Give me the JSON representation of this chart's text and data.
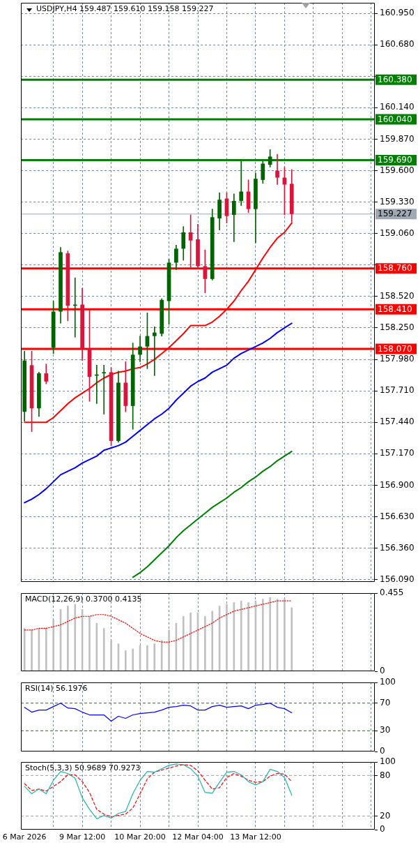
{
  "chart_data": [
    {
      "type": "candlestick",
      "title": "USDJPY,H4 159.487 159.610 159.158 159.227",
      "categories": [
        null,
        null,
        null,
        null,
        null,
        null,
        null,
        null,
        null,
        null,
        null,
        null,
        null,
        null,
        null,
        null,
        null,
        null,
        null,
        null,
        null,
        null,
        null,
        null,
        null,
        null,
        null,
        null,
        null,
        null,
        null,
        null,
        null,
        null,
        null,
        null,
        null,
        null,
        null,
        null,
        null,
        null,
        null,
        null,
        null,
        null,
        null,
        null,
        null
      ],
      "ohlc": [
        [
          157.53,
          158.05,
          157.45,
          157.97
        ],
        [
          157.93,
          158.05,
          157.36,
          157.56
        ],
        [
          157.56,
          157.87,
          157.49,
          157.86
        ],
        [
          157.86,
          157.94,
          157.77,
          157.79
        ],
        [
          158.08,
          158.48,
          158.03,
          158.39
        ],
        [
          158.39,
          158.94,
          158.29,
          158.9
        ],
        [
          158.89,
          158.91,
          158.31,
          158.44
        ],
        [
          158.44,
          158.68,
          158.17,
          158.45
        ],
        [
          158.45,
          158.59,
          157.97,
          158.07
        ],
        [
          158.07,
          158.4,
          157.62,
          157.83
        ],
        [
          157.84,
          157.93,
          157.6,
          157.85
        ],
        [
          157.86,
          157.93,
          157.51,
          157.87
        ],
        [
          157.87,
          157.91,
          157.24,
          157.28
        ],
        [
          157.28,
          157.88,
          157.27,
          157.78
        ],
        [
          157.78,
          157.96,
          157.53,
          157.58
        ],
        [
          157.58,
          158.12,
          157.38,
          158.02
        ],
        [
          158.02,
          158.18,
          157.96,
          158.09
        ],
        [
          158.09,
          158.38,
          157.9,
          158.18
        ],
        [
          158.18,
          158.26,
          157.84,
          158.21
        ],
        [
          158.2,
          158.5,
          158.18,
          158.49
        ],
        [
          158.48,
          158.84,
          158.28,
          158.81
        ],
        [
          158.81,
          158.96,
          158.75,
          158.93
        ],
        [
          158.93,
          159.12,
          158.83,
          159.07
        ],
        [
          159.07,
          159.22,
          158.76,
          159
        ],
        [
          159.01,
          159.14,
          158.76,
          158.78
        ],
        [
          158.78,
          158.92,
          158.55,
          158.67
        ],
        [
          158.67,
          159.27,
          158.66,
          159.2
        ],
        [
          159.19,
          159.41,
          159.09,
          159.35
        ],
        [
          159.36,
          159.41,
          159.15,
          159.21
        ],
        [
          159.22,
          159.4,
          158.99,
          159.34
        ],
        [
          159.34,
          159.68,
          159.3,
          159.42
        ],
        [
          159.42,
          159.52,
          159.24,
          159.27
        ],
        [
          159.27,
          159.58,
          158.98,
          159.53
        ],
        [
          159.52,
          159.68,
          159.49,
          159.66
        ],
        [
          159.65,
          159.78,
          159.63,
          159.72
        ],
        [
          159.6,
          159.74,
          159.48,
          159.54
        ],
        [
          159.54,
          159.63,
          159.22,
          159.48
        ],
        [
          159.487,
          159.61,
          159.158,
          159.227
        ],
        null,
        null,
        null,
        null,
        null,
        null,
        null,
        null,
        null,
        null,
        null
      ],
      "colors": [
        "#006400",
        "#dc143c",
        "#006400",
        "#dc143c",
        "#006400",
        "#006400",
        "#dc143c",
        "#006400",
        "#dc143c",
        "#dc143c",
        "#006400",
        "#006400",
        "#dc143c",
        "#006400",
        "#dc143c",
        "#006400",
        "#006400",
        "#006400",
        "#006400",
        "#006400",
        "#006400",
        "#006400",
        "#006400",
        "#dc143c",
        "#dc143c",
        "#dc143c",
        "#006400",
        "#006400",
        "#dc143c",
        "#006400",
        "#006400",
        "#dc143c",
        "#006400",
        "#006400",
        "#006400",
        "#dc143c",
        "#dc143c",
        "#dc143c",
        null,
        null,
        null,
        null,
        null,
        null,
        null,
        null,
        null,
        null,
        null
      ],
      "series": [
        {
          "type": "line",
          "color": "#ff0000",
          "values": [
            157.44,
            157.44,
            157.44,
            157.44,
            157.48,
            157.54,
            157.6,
            157.65,
            157.69,
            157.73,
            157.78,
            157.82,
            157.85,
            157.87,
            157.88,
            157.9,
            157.91,
            157.94,
            157.98,
            158.03,
            158.08,
            158.14,
            158.2,
            158.27,
            158.27,
            158.27,
            158.3,
            158.35,
            158.41,
            158.48,
            158.57,
            158.65,
            158.75,
            158.85,
            158.94,
            159.02,
            159.07,
            159.15,
            null,
            null,
            null,
            null,
            null,
            null,
            null,
            null,
            null,
            null,
            null
          ]
        },
        {
          "type": "line",
          "color": "#0000ff",
          "values": [
            156.75,
            156.78,
            156.82,
            156.87,
            156.93,
            156.99,
            157.02,
            157.05,
            157.09,
            157.12,
            157.15,
            157.2,
            157.22,
            157.24,
            157.27,
            157.32,
            157.37,
            157.42,
            157.47,
            157.51,
            157.56,
            157.63,
            157.69,
            157.75,
            157.79,
            157.82,
            157.87,
            157.9,
            157.93,
            157.99,
            158.03,
            158.06,
            158.09,
            158.12,
            158.16,
            158.21,
            158.25,
            158.29,
            null,
            null,
            null,
            null,
            null,
            null,
            null,
            null,
            null,
            null,
            null
          ]
        },
        {
          "type": "line",
          "color": "#008000",
          "values": [
            null,
            null,
            null,
            null,
            null,
            null,
            null,
            null,
            null,
            null,
            null,
            null,
            null,
            null,
            null,
            156.11,
            156.15,
            156.2,
            156.26,
            156.32,
            156.38,
            156.45,
            156.51,
            156.56,
            156.61,
            156.66,
            156.71,
            156.75,
            156.79,
            156.84,
            156.88,
            156.93,
            156.97,
            157.02,
            157.06,
            157.11,
            157.15,
            157.19,
            null,
            null,
            null,
            null,
            null,
            null,
            null,
            null,
            null,
            null,
            null
          ]
        }
      ],
      "ylim": [
        156.07,
        161.04
      ],
      "yticks": [
        {
          "value": 156.09,
          "label": "156.090"
        },
        {
          "value": 156.36,
          "label": "156.360"
        },
        {
          "value": 156.63,
          "label": "156.630"
        },
        {
          "value": 156.9,
          "label": "156.900"
        },
        {
          "value": 157.17,
          "label": "157.170"
        },
        {
          "value": 157.44,
          "label": "157.440"
        },
        {
          "value": 157.71,
          "label": "157.710"
        },
        {
          "value": 157.98,
          "label": "157.980"
        },
        {
          "value": 158.25,
          "label": "158.250"
        },
        {
          "value": 158.52,
          "label": "158.520"
        },
        {
          "value": 158.79,
          "label": null
        },
        {
          "value": 159.06,
          "label": "159.060"
        },
        {
          "value": 159.33,
          "label": "159.330"
        },
        {
          "value": 159.6,
          "label": "159.600"
        },
        {
          "value": 159.87,
          "label": "159.870"
        },
        {
          "value": 160.14,
          "label": "160.140"
        },
        {
          "value": 160.41,
          "label": null
        },
        {
          "value": 160.68,
          "label": "160.680"
        },
        {
          "value": 160.95,
          "label": "160.950"
        }
      ],
      "ref_lines": [
        {
          "axis": "y",
          "value": 160.38,
          "label": "160.380",
          "color": "#008000"
        },
        {
          "axis": "y",
          "value": 160.04,
          "label": "160.040",
          "color": "#008000"
        },
        {
          "axis": "y",
          "value": 159.69,
          "label": "159.690",
          "color": "#008000"
        },
        {
          "axis": "y",
          "value": 159.227,
          "label": "159.227",
          "color": "#a0a8b4"
        },
        {
          "axis": "y",
          "value": 158.76,
          "label": "158.760",
          "color": "#ff0000"
        },
        {
          "axis": "y",
          "value": 158.41,
          "label": "158.410",
          "color": "#ff0000"
        },
        {
          "axis": "y",
          "value": 158.07,
          "label": "158.070",
          "color": "#ff0000"
        }
      ],
      "grid": true
    },
    {
      "type": "bar",
      "title": "MACD(12,26,9) 0.3700 0.4135",
      "categories": [
        null,
        null,
        null,
        null,
        null,
        null,
        null,
        null,
        null,
        null,
        null,
        null,
        null,
        null,
        null,
        null,
        null,
        null,
        null,
        null,
        null,
        null,
        null,
        null,
        null,
        null,
        null,
        null,
        null,
        null,
        null,
        null,
        null,
        null,
        null,
        null,
        null,
        null,
        null,
        null,
        null,
        null,
        null,
        null,
        null,
        null,
        null,
        null,
        null
      ],
      "series": [
        {
          "color": "#c0c0c0",
          "values": [
            0.25,
            0.24,
            0.25,
            0.25,
            0.3,
            0.36,
            0.38,
            0.39,
            0.36,
            0.32,
            0.28,
            0.25,
            0.18,
            0.16,
            0.12,
            0.13,
            0.15,
            0.15,
            0.16,
            0.18,
            0.24,
            0.28,
            0.32,
            0.34,
            0.34,
            0.32,
            0.35,
            0.38,
            0.39,
            0.4,
            0.41,
            0.4,
            0.41,
            0.42,
            0.43,
            0.42,
            0.42,
            0.37,
            null,
            null,
            null,
            null,
            null,
            null,
            null,
            null,
            null,
            null,
            null
          ]
        },
        {
          "type": "line",
          "color": "#ff0000",
          "line_style": "dotted",
          "values": [
            0.24,
            0.24,
            0.25,
            0.25,
            0.26,
            0.27,
            0.29,
            0.31,
            0.32,
            0.32,
            0.33,
            0.33,
            0.32,
            0.3,
            0.28,
            0.25,
            0.22,
            0.2,
            0.18,
            0.17,
            0.17,
            0.18,
            0.2,
            0.22,
            0.24,
            0.26,
            0.28,
            0.31,
            0.33,
            0.35,
            0.36,
            0.37,
            0.38,
            0.39,
            0.4,
            0.41,
            0.41,
            0.41,
            null,
            null,
            null,
            null,
            null,
            null,
            null,
            null,
            null,
            null,
            null
          ]
        }
      ],
      "ylim": [
        0,
        0.455
      ],
      "yticks": [
        0,
        0.455
      ],
      "grid": "x"
    },
    {
      "type": "line",
      "title": "RSI(14) 56.1976",
      "categories": [
        null,
        null,
        null,
        null,
        null,
        null,
        null,
        null,
        null,
        null,
        null,
        null,
        null,
        null,
        null,
        null,
        null,
        null,
        null,
        null,
        null,
        null,
        null,
        null,
        null,
        null,
        null,
        null,
        null,
        null,
        null,
        null,
        null,
        null,
        null,
        null,
        null,
        null,
        null,
        null,
        null,
        null,
        null,
        null,
        null,
        null,
        null,
        null,
        null
      ],
      "series": [
        {
          "color": "#0000ff",
          "values": [
            64,
            57,
            60,
            60,
            65,
            70,
            63,
            62,
            57,
            53,
            53,
            53,
            44,
            51,
            48,
            53,
            55,
            56,
            57,
            60,
            64,
            65,
            67,
            66,
            60,
            60,
            65,
            67,
            64,
            65,
            66,
            62,
            67,
            68,
            70,
            64,
            62,
            56,
            null,
            null,
            null,
            null,
            null,
            null,
            null,
            null,
            null,
            null,
            null
          ]
        }
      ],
      "ylim": [
        0,
        100
      ],
      "yticks": [
        0,
        30,
        70,
        100
      ],
      "ref_lines": [
        {
          "axis": "y",
          "value": 70,
          "color": "#008000",
          "line_style": "dashed"
        },
        {
          "axis": "y",
          "value": 30,
          "color": "#008000",
          "line_style": "dashed"
        }
      ],
      "grid": "x"
    },
    {
      "type": "line",
      "title": "Stoch(5,3,3) 50.9689 70.9273",
      "categories": [
        "6 Mar 2026",
        null,
        null,
        null,
        null,
        null,
        null,
        null,
        "9 Mar 12:00",
        null,
        null,
        null,
        null,
        null,
        null,
        null,
        "10 Mar 20:00",
        null,
        null,
        null,
        null,
        null,
        null,
        null,
        "12 Mar 04:00",
        null,
        null,
        null,
        null,
        null,
        null,
        null,
        "13 Mar 12:00",
        null,
        null,
        null,
        null,
        null,
        null,
        null,
        null,
        null,
        null,
        null,
        null,
        null,
        null,
        null,
        null
      ],
      "series": [
        {
          "color": "#20b2aa",
          "values": [
            64,
            53,
            60,
            53,
            73,
            86,
            83,
            76,
            47,
            30,
            16,
            21,
            17,
            24,
            27,
            53,
            73,
            86,
            85,
            90,
            95,
            97,
            96,
            90,
            79,
            55,
            54,
            70,
            85,
            86,
            81,
            71,
            66,
            71,
            89,
            86,
            77,
            51,
            null,
            null,
            null,
            null,
            null,
            null,
            null,
            null,
            null,
            null,
            null
          ]
        },
        {
          "color": "#ff0000",
          "line_style": "dashed",
          "values": [
            68,
            58,
            60,
            57,
            64,
            71,
            81,
            81,
            71,
            55,
            30,
            23,
            19,
            21,
            23,
            32,
            53,
            75,
            85,
            88,
            91,
            94,
            96,
            95,
            87,
            73,
            60,
            62,
            77,
            83,
            79,
            73,
            70,
            71,
            79,
            83,
            82,
            71,
            null,
            null,
            null,
            null,
            null,
            null,
            null,
            null,
            null,
            null,
            null
          ]
        }
      ],
      "ylim": [
        0,
        100
      ],
      "yticks": [
        0,
        20,
        80,
        100
      ],
      "ref_lines": [
        {
          "axis": "y",
          "value": 80,
          "color": "#a0a0a0",
          "line_style": "dashed"
        },
        {
          "axis": "y",
          "value": 20,
          "color": "#a0a0a0",
          "line_style": "dashed"
        }
      ],
      "grid": "x"
    }
  ]
}
